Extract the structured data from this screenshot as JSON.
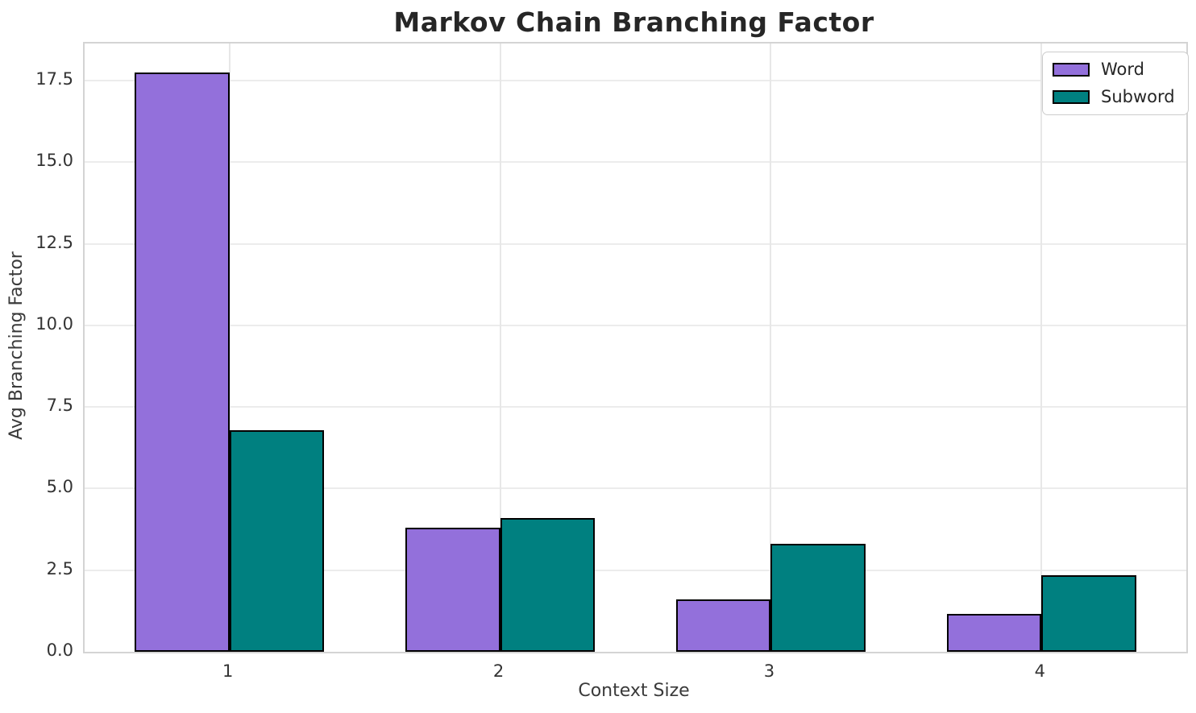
{
  "title": "Markov Chain Branching Factor",
  "chart_data": {
    "type": "bar",
    "title": "Markov Chain Branching Factor",
    "xlabel": "Context Size",
    "ylabel": "Avg Branching Factor",
    "categories": [
      "1",
      "2",
      "3",
      "4"
    ],
    "series": [
      {
        "name": "Word",
        "color": "#9370DB",
        "values": [
          17.75,
          3.8,
          1.6,
          1.15
        ]
      },
      {
        "name": "Subword",
        "color": "#008080",
        "values": [
          6.8,
          4.1,
          3.3,
          2.35
        ]
      }
    ],
    "bar_edge_color": "#000000",
    "bar_width_units": 0.35,
    "x_positions": [
      1,
      2,
      3,
      4
    ],
    "xlim": [
      0.465,
      4.535
    ],
    "ylim": [
      0,
      18.64
    ],
    "yticks": [
      0.0,
      2.5,
      5.0,
      7.5,
      10.0,
      12.5,
      15.0,
      17.5
    ],
    "ytick_labels": [
      "0.0",
      "2.5",
      "5.0",
      "7.5",
      "10.0",
      "12.5",
      "15.0",
      "17.5"
    ],
    "grid": true,
    "grid_color": "#ececec",
    "spine_color": "#d4d4d4",
    "legend_position": "upper right",
    "background": "#ffffff",
    "title_color": "#262626",
    "tick_color": "#333333"
  }
}
